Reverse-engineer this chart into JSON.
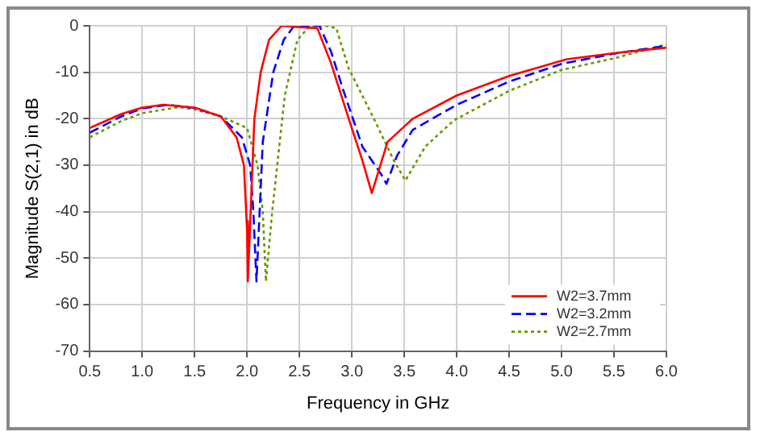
{
  "chart_data": {
    "type": "line",
    "xlabel": "Frequency in GHz",
    "ylabel": "Magnitude S(2,1) in dB",
    "xlim": [
      0.5,
      6.0
    ],
    "ylim": [
      -70,
      0
    ],
    "xticks": [
      {
        "value": 0.5,
        "label": "0.5"
      },
      {
        "value": 1,
        "label": "1.0"
      },
      {
        "value": 1.5,
        "label": "1.5"
      },
      {
        "value": 2,
        "label": "2.0"
      },
      {
        "value": 2.5,
        "label": "2.5"
      },
      {
        "value": 3,
        "label": "3.0"
      },
      {
        "value": 3.5,
        "label": "3.5"
      },
      {
        "value": 4,
        "label": "4.0"
      },
      {
        "value": 4.5,
        "label": "4.5"
      },
      {
        "value": 5,
        "label": "5.0"
      },
      {
        "value": 5.5,
        "label": "5.5"
      },
      {
        "value": 6,
        "label": "6.0"
      }
    ],
    "yticks": [
      0,
      -10,
      -20,
      -30,
      -40,
      -50,
      -60,
      -70
    ],
    "grid": true,
    "legend": "bottom right",
    "marker": "none",
    "series": [
      {
        "name": "W2=3.7mm",
        "color": "#ff0000",
        "line_style": "solid",
        "x": [
          0.5,
          0.8,
          1.0,
          1.2,
          1.5,
          1.75,
          1.9,
          1.97,
          2.0,
          2.005,
          2.01,
          2.07,
          2.13,
          2.21,
          2.33,
          2.5,
          2.67,
          2.8,
          2.97,
          3.1,
          3.19,
          3.34,
          3.58,
          4.0,
          4.5,
          5.05,
          5.5,
          6.0
        ],
        "values": [
          -22,
          -19,
          -17.6,
          -17,
          -17.6,
          -19.5,
          -24,
          -30,
          -44,
          -42,
          -55,
          -20,
          -10,
          -3,
          0,
          -0.3,
          -0.5,
          -8,
          -20,
          -29,
          -36,
          -25,
          -20,
          -15,
          -10.8,
          -7.2,
          -5.9,
          -4.7
        ]
      },
      {
        "name": "W2=3.2mm",
        "color": "#0000ff",
        "line_style": "dashed",
        "x": [
          0.5,
          0.8,
          1.0,
          1.25,
          1.5,
          1.75,
          1.95,
          2.03,
          2.06,
          2.09,
          2.15,
          2.25,
          2.35,
          2.45,
          2.6,
          2.69,
          2.8,
          2.92,
          3.1,
          3.28,
          3.33,
          3.43,
          3.58,
          4.0,
          4.5,
          5.0,
          5.5,
          6.0
        ],
        "values": [
          -23,
          -19.5,
          -17.8,
          -17,
          -17.7,
          -19.5,
          -24,
          -30,
          -40,
          -55,
          -25,
          -10,
          -3,
          0,
          0,
          0,
          -5.5,
          -14,
          -26,
          -32,
          -34,
          -28,
          -22.4,
          -17,
          -12,
          -8.2,
          -6,
          -4.3
        ]
      },
      {
        "name": "W2=2.7mm",
        "color": "#669900",
        "line_style": "dotted",
        "x": [
          0.5,
          0.8,
          1.0,
          1.35,
          1.5,
          1.75,
          2.0,
          2.1,
          2.15,
          2.18,
          2.24,
          2.36,
          2.48,
          2.6,
          2.75,
          2.85,
          2.97,
          3.21,
          3.4,
          3.51,
          3.7,
          3.97,
          4.5,
          5.0,
          5.5,
          6.0
        ],
        "values": [
          -24,
          -20.5,
          -18.8,
          -17.5,
          -18,
          -19.5,
          -22,
          -30,
          -40,
          -55,
          -40,
          -15,
          -3,
          0,
          0,
          -0.5,
          -9.2,
          -20,
          -29,
          -33.3,
          -26,
          -20.4,
          -14,
          -9.5,
          -7,
          -4
        ]
      }
    ]
  }
}
